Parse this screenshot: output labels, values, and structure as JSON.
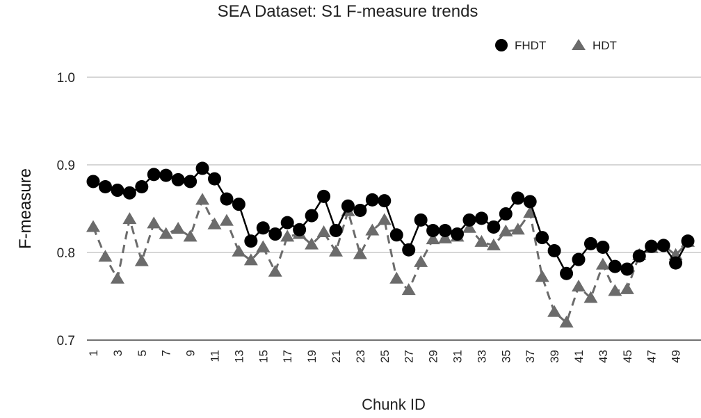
{
  "chart_data": {
    "type": "line",
    "title": "SEA Dataset: S1 F-measure trends",
    "xlabel": "Chunk ID",
    "ylabel": "F-measure",
    "ylim": [
      0.7,
      1.0
    ],
    "yticks": [
      "0.7",
      "0.8",
      "0.9",
      "1.0"
    ],
    "grid": true,
    "legend_position": "top-right",
    "x": [
      1,
      2,
      3,
      4,
      5,
      6,
      7,
      8,
      9,
      10,
      11,
      12,
      13,
      14,
      15,
      16,
      17,
      18,
      19,
      20,
      21,
      22,
      23,
      24,
      25,
      26,
      27,
      28,
      29,
      30,
      31,
      32,
      33,
      34,
      35,
      36,
      37,
      38,
      39,
      40,
      41,
      42,
      43,
      44,
      45,
      46,
      47,
      48,
      49,
      50
    ],
    "xtick_labels": [
      "1",
      "3",
      "5",
      "7",
      "9",
      "11",
      "13",
      "15",
      "17",
      "19",
      "21",
      "23",
      "25",
      "27",
      "29",
      "31",
      "33",
      "35",
      "37",
      "39",
      "41",
      "43",
      "45",
      "47",
      "49"
    ],
    "series": [
      {
        "name": "FHDT",
        "marker": "circle",
        "color": "#000000",
        "dash": "solid",
        "values": [
          0.881,
          0.875,
          0.871,
          0.868,
          0.875,
          0.889,
          0.888,
          0.883,
          0.881,
          0.896,
          0.884,
          0.861,
          0.855,
          0.813,
          0.828,
          0.821,
          0.834,
          0.826,
          0.842,
          0.864,
          0.825,
          0.853,
          0.848,
          0.86,
          0.859,
          0.82,
          0.803,
          0.837,
          0.825,
          0.825,
          0.821,
          0.837,
          0.839,
          0.829,
          0.844,
          0.862,
          0.858,
          0.817,
          0.802,
          0.776,
          0.792,
          0.81,
          0.806,
          0.784,
          0.781,
          0.796,
          0.807,
          0.808,
          0.788,
          0.813
        ]
      },
      {
        "name": "HDT",
        "marker": "triangle",
        "color": "#6b6b6b",
        "dash": "dashed",
        "values": [
          0.829,
          0.795,
          0.77,
          0.838,
          0.79,
          0.833,
          0.821,
          0.827,
          0.818,
          0.86,
          0.832,
          0.836,
          0.801,
          0.791,
          0.806,
          0.778,
          0.818,
          0.821,
          0.809,
          0.823,
          0.801,
          0.847,
          0.798,
          0.825,
          0.837,
          0.77,
          0.757,
          0.789,
          0.815,
          0.816,
          0.818,
          0.828,
          0.812,
          0.808,
          0.824,
          0.826,
          0.845,
          0.772,
          0.732,
          0.72,
          0.761,
          0.748,
          0.786,
          0.756,
          0.758,
          0.797,
          0.805,
          0.808,
          0.797,
          0.812
        ]
      }
    ]
  }
}
